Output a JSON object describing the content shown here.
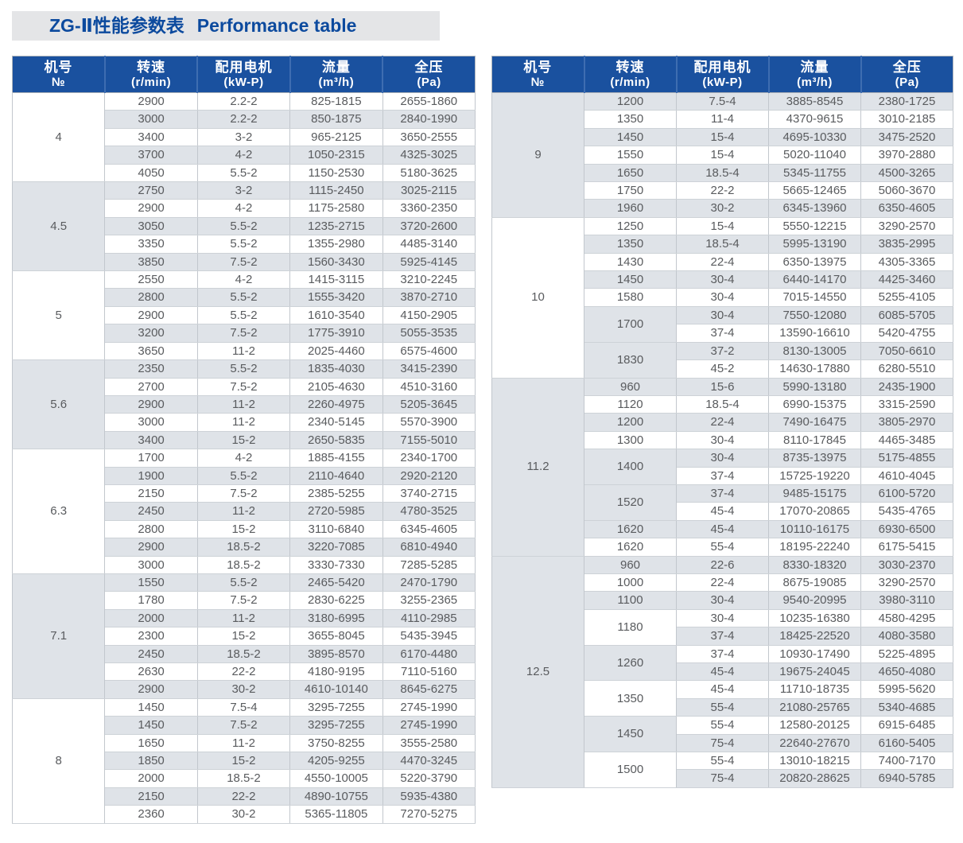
{
  "title": {
    "zh": "ZG-Ⅱ性能参数表",
    "en": "Performance table"
  },
  "colors": {
    "header_blue": "#1a519f",
    "header_separator_blue": "#3e6db1",
    "title_text_blue": "#0c4a9e",
    "title_bar_bg": "#e4e5e7",
    "shaded_row": "#dfe3e8",
    "grid_line": "#c2c7cd",
    "body_text": "#595b5e"
  },
  "columns": [
    {
      "key": "model",
      "zh": "机号",
      "unit": "№"
    },
    {
      "key": "speed",
      "zh": "转速",
      "unit": "(r/min)"
    },
    {
      "key": "motor",
      "zh": "配用电机",
      "unit": "(kW-P)"
    },
    {
      "key": "flow",
      "zh": "流量",
      "unit": "(m³/h)"
    },
    {
      "key": "pressure",
      "zh": "全压",
      "unit": "(Pa)"
    }
  ],
  "tables": [
    {
      "side": "left",
      "first_row_shaded": false,
      "groups": [
        {
          "no": "4",
          "rows": [
            [
              "2900",
              "2.2-2",
              "825-1815",
              "2655-1860"
            ],
            [
              "3000",
              "2.2-2",
              "850-1875",
              "2840-1990"
            ],
            [
              "3400",
              "3-2",
              "965-2125",
              "3650-2555"
            ],
            [
              "3700",
              "4-2",
              "1050-2315",
              "4325-3025"
            ],
            [
              "4050",
              "5.5-2",
              "1150-2530",
              "5180-3625"
            ]
          ]
        },
        {
          "no": "4.5",
          "rows": [
            [
              "2750",
              "3-2",
              "1115-2450",
              "3025-2115"
            ],
            [
              "2900",
              "4-2",
              "1175-2580",
              "3360-2350"
            ],
            [
              "3050",
              "5.5-2",
              "1235-2715",
              "3720-2600"
            ],
            [
              "3350",
              "5.5-2",
              "1355-2980",
              "4485-3140"
            ],
            [
              "3850",
              "7.5-2",
              "1560-3430",
              "5925-4145"
            ]
          ]
        },
        {
          "no": "5",
          "rows": [
            [
              "2550",
              "4-2",
              "1415-3115",
              "3210-2245"
            ],
            [
              "2800",
              "5.5-2",
              "1555-3420",
              "3870-2710"
            ],
            [
              "2900",
              "5.5-2",
              "1610-3540",
              "4150-2905"
            ],
            [
              "3200",
              "7.5-2",
              "1775-3910",
              "5055-3535"
            ],
            [
              "3650",
              "11-2",
              "2025-4460",
              "6575-4600"
            ]
          ]
        },
        {
          "no": "5.6",
          "rows": [
            [
              "2350",
              "5.5-2",
              "1835-4030",
              "3415-2390"
            ],
            [
              "2700",
              "7.5-2",
              "2105-4630",
              "4510-3160"
            ],
            [
              "2900",
              "11-2",
              "2260-4975",
              "5205-3645"
            ],
            [
              "3000",
              "11-2",
              "2340-5145",
              "5570-3900"
            ],
            [
              "3400",
              "15-2",
              "2650-5835",
              "7155-5010"
            ]
          ]
        },
        {
          "no": "6.3",
          "rows": [
            [
              "1700",
              "4-2",
              "1885-4155",
              "2340-1700"
            ],
            [
              "1900",
              "5.5-2",
              "2110-4640",
              "2920-2120"
            ],
            [
              "2150",
              "7.5-2",
              "2385-5255",
              "3740-2715"
            ],
            [
              "2450",
              "11-2",
              "2720-5985",
              "4780-3525"
            ],
            [
              "2800",
              "15-2",
              "3110-6840",
              "6345-4605"
            ],
            [
              "2900",
              "18.5-2",
              "3220-7085",
              "6810-4940"
            ],
            [
              "3000",
              "18.5-2",
              "3330-7330",
              "7285-5285"
            ]
          ]
        },
        {
          "no": "7.1",
          "rows": [
            [
              "1550",
              "5.5-2",
              "2465-5420",
              "2470-1790"
            ],
            [
              "1780",
              "7.5-2",
              "2830-6225",
              "3255-2365"
            ],
            [
              "2000",
              "11-2",
              "3180-6995",
              "4110-2985"
            ],
            [
              "2300",
              "15-2",
              "3655-8045",
              "5435-3945"
            ],
            [
              "2450",
              "18.5-2",
              "3895-8570",
              "6170-4480"
            ],
            [
              "2630",
              "22-2",
              "4180-9195",
              "7110-5160"
            ],
            [
              "2900",
              "30-2",
              "4610-10140",
              "8645-6275"
            ]
          ]
        },
        {
          "no": "8",
          "rows": [
            [
              "1450",
              "7.5-4",
              "3295-7255",
              "2745-1990"
            ],
            [
              "1450",
              "7.5-2",
              "3295-7255",
              "2745-1990"
            ],
            [
              "1650",
              "11-2",
              "3750-8255",
              "3555-2580"
            ],
            [
              "1850",
              "15-2",
              "4205-9255",
              "4470-3245"
            ],
            [
              "2000",
              "18.5-2",
              "4550-10005",
              "5220-3790"
            ],
            [
              "2150",
              "22-2",
              "4890-10755",
              "5935-4380"
            ],
            [
              "2360",
              "30-2",
              "5365-11805",
              "7270-5275"
            ]
          ]
        }
      ]
    },
    {
      "side": "right",
      "first_row_shaded": true,
      "groups": [
        {
          "no": "9",
          "rows": [
            [
              "1200",
              "7.5-4",
              "3885-8545",
              "2380-1725"
            ],
            [
              "1350",
              "11-4",
              "4370-9615",
              "3010-2185"
            ],
            [
              "1450",
              "15-4",
              "4695-10330",
              "3475-2520"
            ],
            [
              "1550",
              "15-4",
              "5020-11040",
              "3970-2880"
            ],
            [
              "1650",
              "18.5-4",
              "5345-11755",
              "4500-3265"
            ],
            [
              "1750",
              "22-2",
              "5665-12465",
              "5060-3670"
            ],
            [
              "1960",
              "30-2",
              "6345-13960",
              "6350-4605"
            ]
          ]
        },
        {
          "no": "10",
          "rows": [
            [
              "1250",
              "15-4",
              "5550-12215",
              "3290-2570"
            ],
            [
              "1350",
              "18.5-4",
              "5995-13190",
              "3835-2995"
            ],
            [
              "1430",
              "22-4",
              "6350-13975",
              "4305-3365"
            ],
            [
              "1450",
              "30-4",
              "6440-14170",
              "4425-3460"
            ],
            [
              "1580",
              "30-4",
              "7015-14550",
              "5255-4105"
            ],
            {
              "speed": "1700",
              "shaded": true,
              "subs": [
                [
                  "30-4",
                  "7550-12080",
                  "6085-5705"
                ],
                [
                  "37-4",
                  "13590-16610",
                  "5420-4755"
                ]
              ]
            },
            {
              "speed": "1830",
              "shaded": false,
              "subs": [
                [
                  "37-2",
                  "8130-13005",
                  "7050-6610"
                ],
                [
                  "45-2",
                  "14630-17880",
                  "6280-5510"
                ]
              ]
            }
          ]
        },
        {
          "no": "11.2",
          "rows": [
            [
              "960",
              "15-6",
              "5990-13180",
              "2435-1900"
            ],
            [
              "1120",
              "18.5-4",
              "6990-15375",
              "3315-2590"
            ],
            [
              "1200",
              "22-4",
              "7490-16475",
              "3805-2970"
            ],
            [
              "1300",
              "30-4",
              "8110-17845",
              "4465-3485"
            ],
            {
              "speed": "1400",
              "shaded": true,
              "subs": [
                [
                  "30-4",
                  "8735-13975",
                  "5175-4855"
                ],
                [
                  "37-4",
                  "15725-19220",
                  "4610-4045"
                ]
              ]
            },
            {
              "speed": "1520",
              "shaded": false,
              "subs": [
                [
                  "37-4",
                  "9485-15175",
                  "6100-5720"
                ],
                [
                  "45-4",
                  "17070-20865",
                  "5435-4765"
                ]
              ]
            },
            [
              "1620",
              "45-4",
              "10110-16175",
              "6930-6500"
            ],
            [
              "1620",
              "55-4",
              "18195-22240",
              "6175-5415"
            ]
          ]
        },
        {
          "no": "12.5",
          "rows": [
            [
              "960",
              "22-6",
              "8330-18320",
              "3030-2370"
            ],
            [
              "1000",
              "22-4",
              "8675-19085",
              "3290-2570"
            ],
            [
              "1100",
              "30-4",
              "9540-20995",
              "3980-3110"
            ],
            {
              "speed": "1180",
              "shaded": false,
              "subs": [
                [
                  "30-4",
                  "10235-16380",
                  "4580-4295"
                ],
                [
                  "37-4",
                  "18425-22520",
                  "4080-3580"
                ]
              ]
            },
            {
              "speed": "1260",
              "shaded": true,
              "subs": [
                [
                  "37-4",
                  "10930-17490",
                  "5225-4895"
                ],
                [
                  "45-4",
                  "19675-24045",
                  "4650-4080"
                ]
              ]
            },
            {
              "speed": "1350",
              "shaded": false,
              "subs": [
                [
                  "45-4",
                  "11710-18735",
                  "5995-5620"
                ],
                [
                  "55-4",
                  "21080-25765",
                  "5340-4685"
                ]
              ]
            },
            {
              "speed": "1450",
              "shaded": true,
              "subs": [
                [
                  "55-4",
                  "12580-20125",
                  "6915-6485"
                ],
                [
                  "75-4",
                  "22640-27670",
                  "6160-5405"
                ]
              ]
            },
            {
              "speed": "1500",
              "shaded": false,
              "subs": [
                [
                  "55-4",
                  "13010-18215",
                  "7400-7170"
                ],
                [
                  "75-4",
                  "20820-28625",
                  "6940-5785"
                ]
              ]
            }
          ]
        }
      ]
    }
  ]
}
